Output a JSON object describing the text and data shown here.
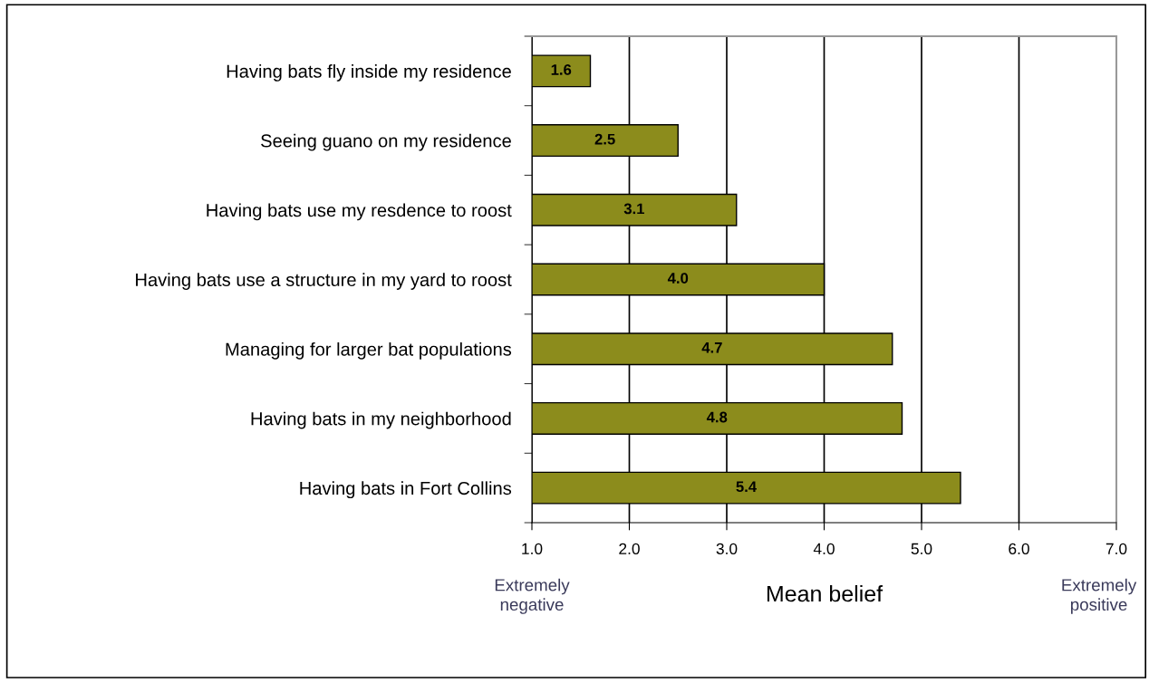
{
  "chart_data": {
    "type": "bar",
    "orientation": "horizontal",
    "categories": [
      "Having bats fly inside my residence",
      "Seeing guano on my residence",
      "Having bats use my resdence to roost",
      "Having bats use a structure in my yard to roost",
      "Managing for larger bat populations",
      "Having bats in my neighborhood",
      "Having bats in Fort Collins"
    ],
    "values": [
      1.6,
      2.5,
      3.1,
      4.0,
      4.7,
      4.8,
      5.4
    ],
    "color": "#8c8c1c",
    "xlim": [
      1.0,
      7.0
    ],
    "xticks": [
      {
        "value": 1,
        "label": "1.0"
      },
      {
        "value": 2,
        "label": "2.0"
      },
      {
        "value": 3,
        "label": "3.0"
      },
      {
        "value": 4,
        "label": "4.0"
      },
      {
        "value": 5,
        "label": "5.0"
      },
      {
        "value": 6,
        "label": "6.0"
      },
      {
        "value": 7,
        "label": "7.0"
      }
    ],
    "xlabel": "Mean belief",
    "annotations": [
      "Extremely\nnegative",
      "Extremely\npositive"
    ],
    "grid": "x",
    "value_labels": [
      "1.6",
      "2.5",
      "3.1",
      "4.0",
      "4.7",
      "4.8",
      "5.4"
    ],
    "legend": false
  }
}
